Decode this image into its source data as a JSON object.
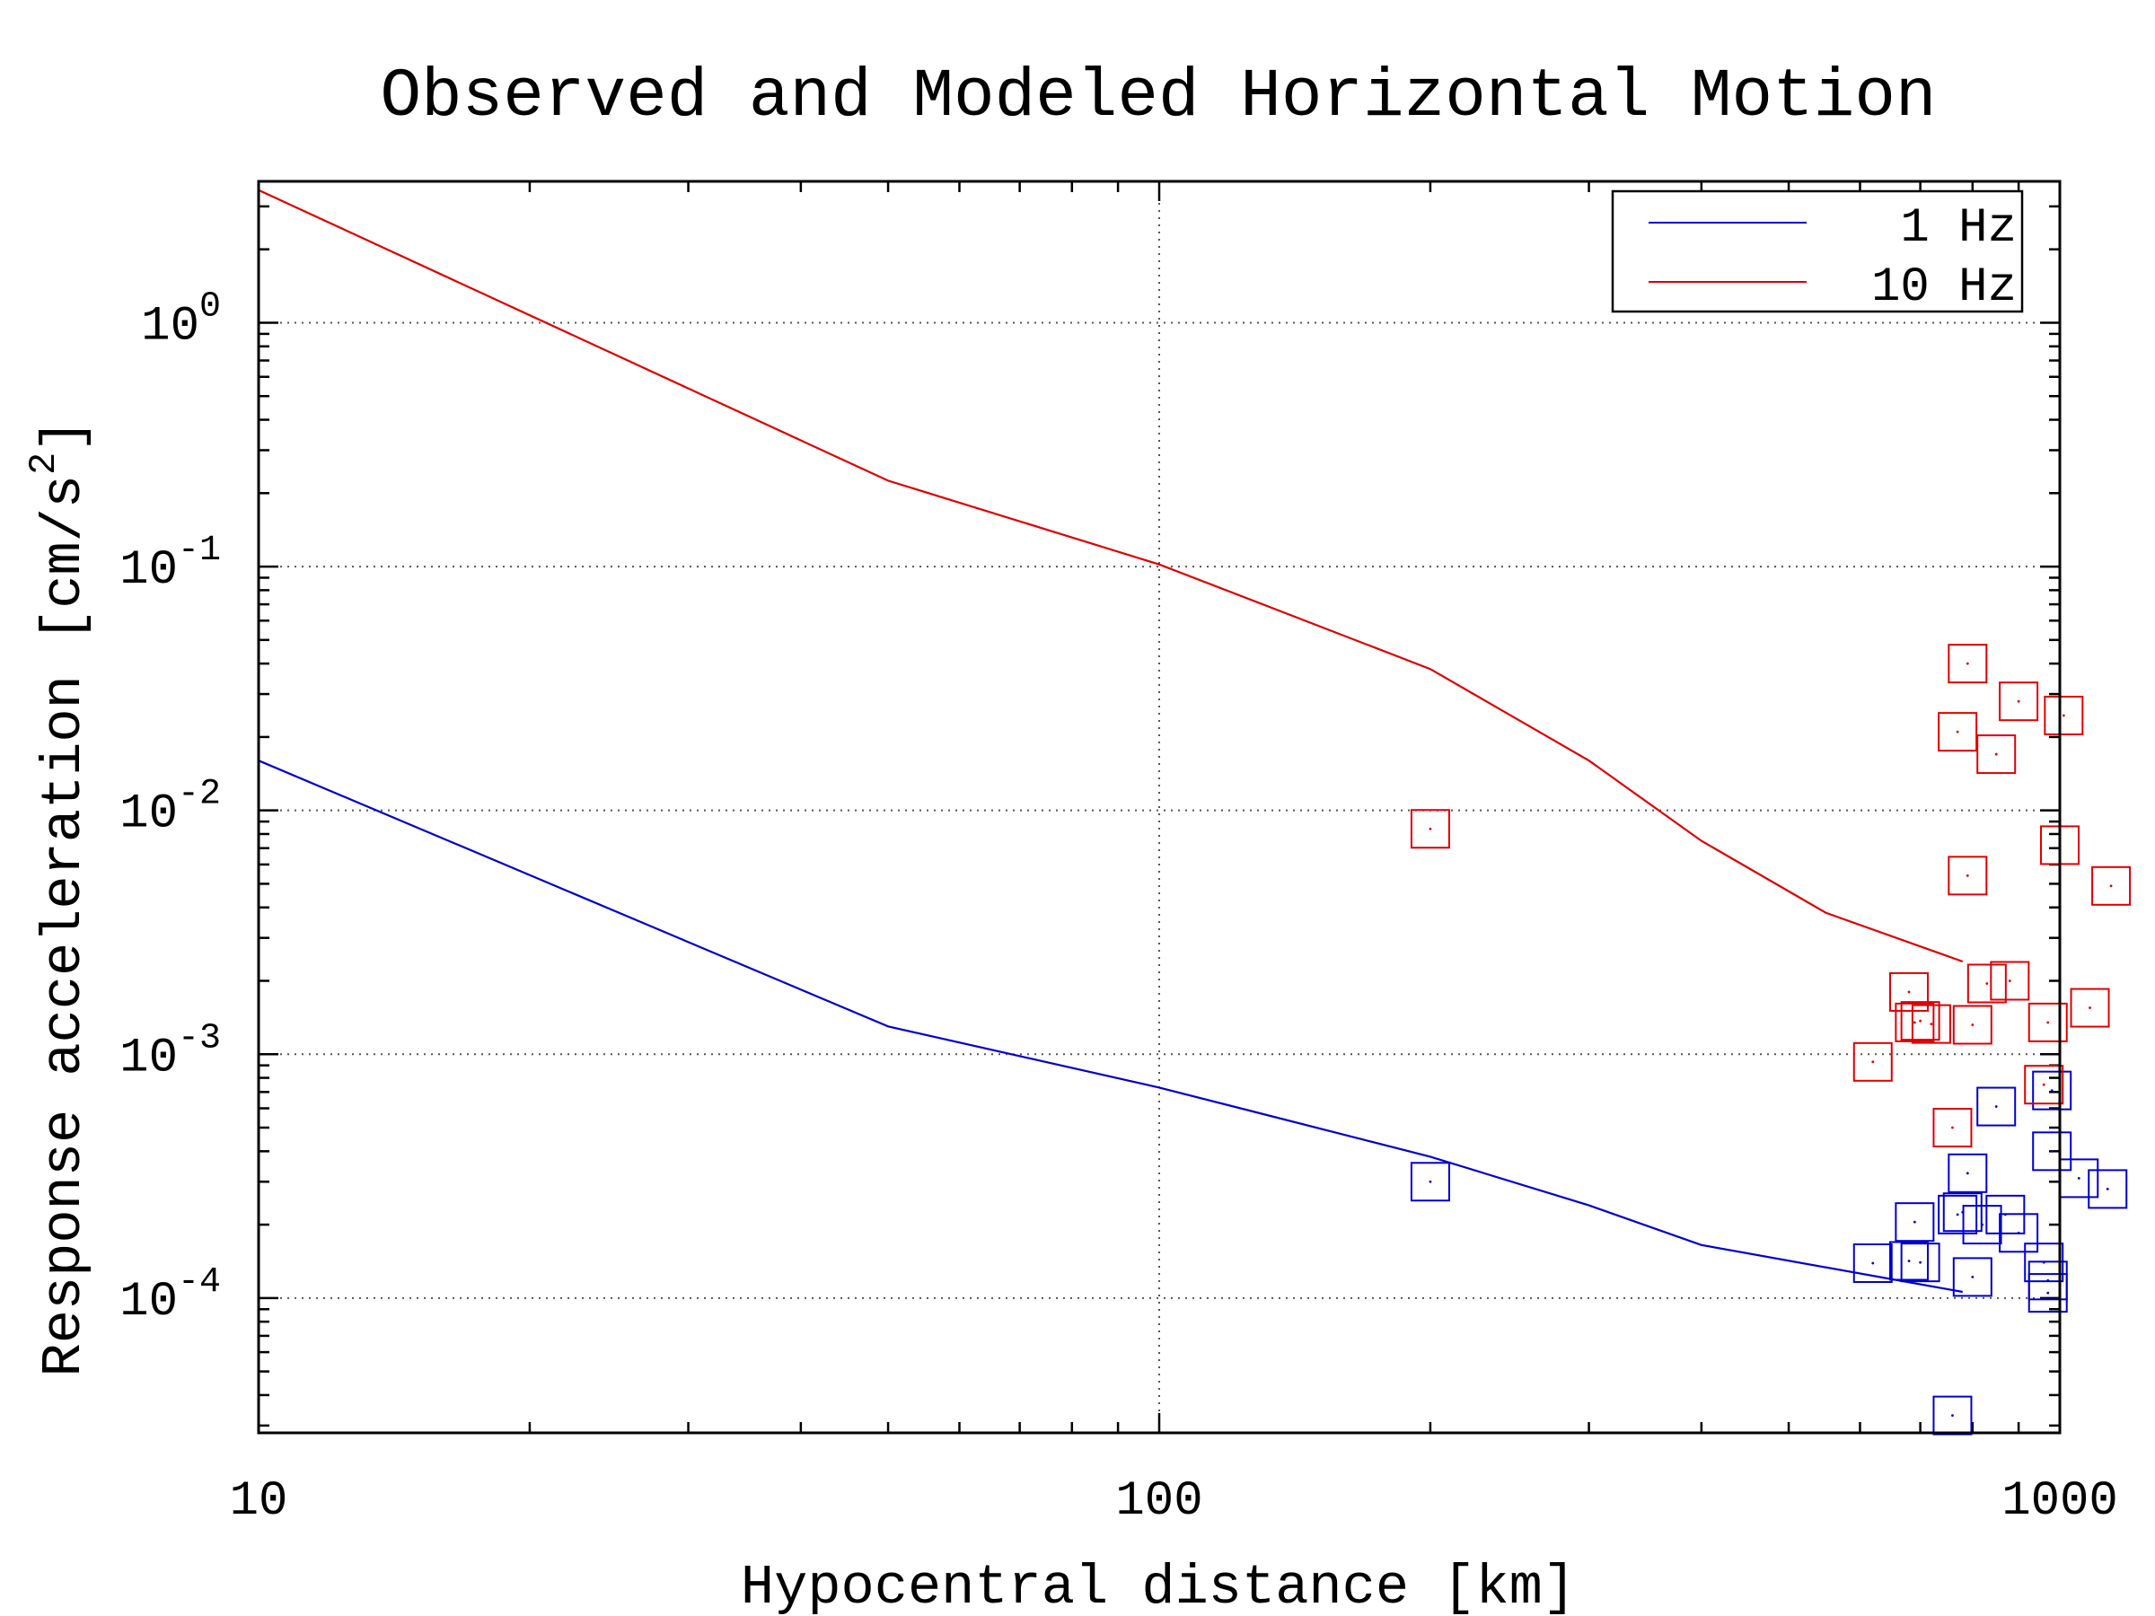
{
  "chart_data": {
    "type": "scatter",
    "title": "Observed and Modeled Horizontal Motion",
    "xlabel": "Hypocentral distance [km]",
    "ylabel_text": "Response acceleration [cm/s",
    "ylabel_superscript": "2",
    "ylabel_close": "]",
    "x_scale": "log",
    "y_scale": "log",
    "xlim": [
      10,
      1000
    ],
    "ylim": [
      2.8e-05,
      3.8
    ],
    "x_ticks": [
      {
        "value": 10,
        "label": "10"
      },
      {
        "value": 100,
        "label": "100"
      },
      {
        "value": 1000,
        "label": "1000"
      }
    ],
    "y_ticks": [
      {
        "value": 1,
        "base": "10",
        "exp": "0"
      },
      {
        "value": 0.1,
        "base": "10",
        "exp": "-1"
      },
      {
        "value": 0.01,
        "base": "10",
        "exp": "-2"
      },
      {
        "value": 0.001,
        "base": "10",
        "exp": "-3"
      },
      {
        "value": 0.0001,
        "base": "10",
        "exp": "-4"
      }
    ],
    "grid": true,
    "legend_position": "top-right",
    "series": [
      {
        "name": "1 Hz",
        "color": "#0000cc",
        "model_line": [
          {
            "x": 10,
            "y": 0.016
          },
          {
            "x": 50,
            "y": 0.0013
          },
          {
            "x": 100,
            "y": 0.00073
          },
          {
            "x": 200,
            "y": 0.00038
          },
          {
            "x": 300,
            "y": 0.00024
          },
          {
            "x": 400,
            "y": 0.000165
          },
          {
            "x": 780,
            "y": 0.000106
          }
        ],
        "observed": [
          {
            "x": 200,
            "y": 0.0003
          },
          {
            "x": 620,
            "y": 0.000139
          },
          {
            "x": 680,
            "y": 0.000142
          },
          {
            "x": 690,
            "y": 0.000205
          },
          {
            "x": 700,
            "y": 0.00014
          },
          {
            "x": 760,
            "y": 3.3e-05
          },
          {
            "x": 770,
            "y": 0.00022
          },
          {
            "x": 780,
            "y": 0.000225
          },
          {
            "x": 790,
            "y": 0.000325
          },
          {
            "x": 800,
            "y": 0.000122
          },
          {
            "x": 820,
            "y": 0.0002
          },
          {
            "x": 850,
            "y": 0.00061
          },
          {
            "x": 870,
            "y": 0.00022
          },
          {
            "x": 900,
            "y": 0.000185
          },
          {
            "x": 960,
            "y": 0.00014
          },
          {
            "x": 970,
            "y": 0.000118
          },
          {
            "x": 970,
            "y": 0.000105
          },
          {
            "x": 980,
            "y": 0.0004
          },
          {
            "x": 980,
            "y": 0.00071
          },
          {
            "x": 1050,
            "y": 0.00031
          },
          {
            "x": 1130,
            "y": 0.00028
          }
        ]
      },
      {
        "name": "10 Hz",
        "color": "#dd0000",
        "model_line": [
          {
            "x": 10,
            "y": 3.5
          },
          {
            "x": 50,
            "y": 0.225
          },
          {
            "x": 100,
            "y": 0.102
          },
          {
            "x": 200,
            "y": 0.038
          },
          {
            "x": 300,
            "y": 0.016
          },
          {
            "x": 400,
            "y": 0.0075
          },
          {
            "x": 550,
            "y": 0.0038
          },
          {
            "x": 780,
            "y": 0.0024
          }
        ],
        "observed": [
          {
            "x": 200,
            "y": 0.0084
          },
          {
            "x": 620,
            "y": 0.00093
          },
          {
            "x": 680,
            "y": 0.0018
          },
          {
            "x": 690,
            "y": 0.00135
          },
          {
            "x": 700,
            "y": 0.00137
          },
          {
            "x": 720,
            "y": 0.00133
          },
          {
            "x": 760,
            "y": 0.0005
          },
          {
            "x": 770,
            "y": 0.021
          },
          {
            "x": 790,
            "y": 0.04
          },
          {
            "x": 790,
            "y": 0.0054
          },
          {
            "x": 800,
            "y": 0.00132
          },
          {
            "x": 830,
            "y": 0.00195
          },
          {
            "x": 850,
            "y": 0.017
          },
          {
            "x": 880,
            "y": 0.002
          },
          {
            "x": 900,
            "y": 0.028
          },
          {
            "x": 960,
            "y": 0.00075
          },
          {
            "x": 970,
            "y": 0.00135
          },
          {
            "x": 1000,
            "y": 0.0072
          },
          {
            "x": 1010,
            "y": 0.0245
          },
          {
            "x": 1080,
            "y": 0.00155
          },
          {
            "x": 1140,
            "y": 0.0049
          }
        ]
      }
    ]
  }
}
